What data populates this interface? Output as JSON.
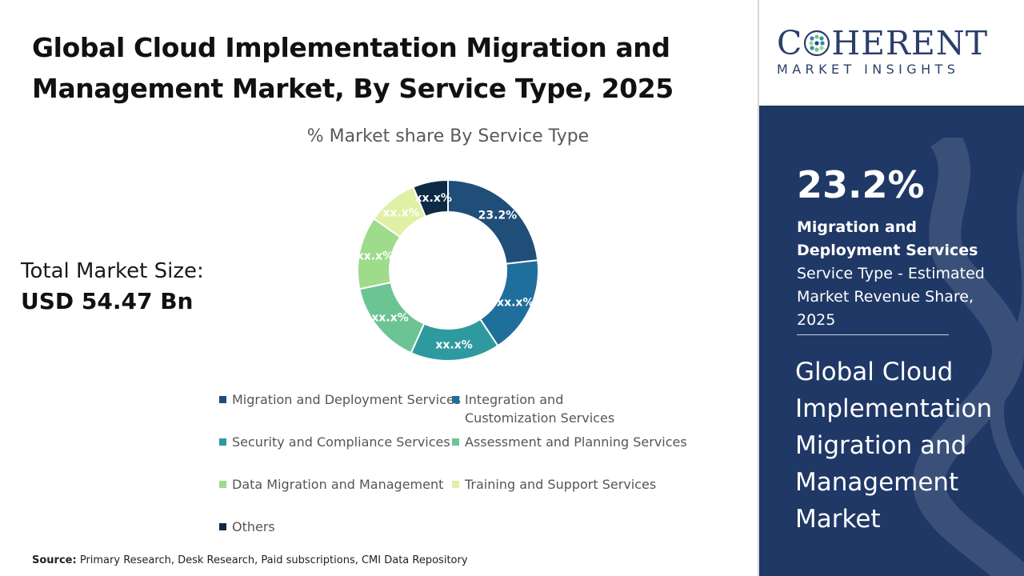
{
  "header": {
    "title": "Global Cloud Implementation Migration and Management Market, By Service Type, 2025"
  },
  "market_size": {
    "label": "Total Market Size:",
    "value": "USD 54.47 Bn"
  },
  "source": {
    "label": "Source:",
    "text": "Primary Research, Desk Research, Paid subscriptions, CMI Data Repository"
  },
  "logo": {
    "main_left": "C",
    "main_right": "HERENT",
    "sub": "MARKET INSIGHTS"
  },
  "highlight": {
    "percent": "23.2%",
    "segment": "Migration and Deployment Services",
    "description": "Service Type - Estimated Market Revenue Share, 2025",
    "market_name": "Global Cloud Implementation Migration and Management Market"
  },
  "colors": {
    "panel_bg": "#1f3866",
    "logo_text": "#2b3f6b"
  },
  "chart_data": {
    "type": "pie",
    "donut": true,
    "title": "% Market share By Service Type",
    "legend_position": "bottom",
    "series": [
      {
        "name": "Migration and Deployment Services",
        "value": 23.2,
        "label": "23.2%",
        "color": "#1f4e79"
      },
      {
        "name": "Integration and Customization Services",
        "value": 17.5,
        "label": "xx.x%",
        "color": "#1f6f9c"
      },
      {
        "name": "Security and Compliance Services",
        "value": 16.0,
        "label": "xx.x%",
        "color": "#2e9aa0"
      },
      {
        "name": "Assessment and Planning Services",
        "value": 15.0,
        "label": "xx.x%",
        "color": "#6cc494"
      },
      {
        "name": "Data Migration and Management",
        "value": 13.0,
        "label": "xx.x%",
        "color": "#9edb8a"
      },
      {
        "name": "Training and Support Services",
        "value": 9.0,
        "label": "xx.x%",
        "color": "#e0f0a4"
      },
      {
        "name": "Others",
        "value": 6.3,
        "label": "xx.x%",
        "color": "#0d2b45"
      }
    ]
  }
}
